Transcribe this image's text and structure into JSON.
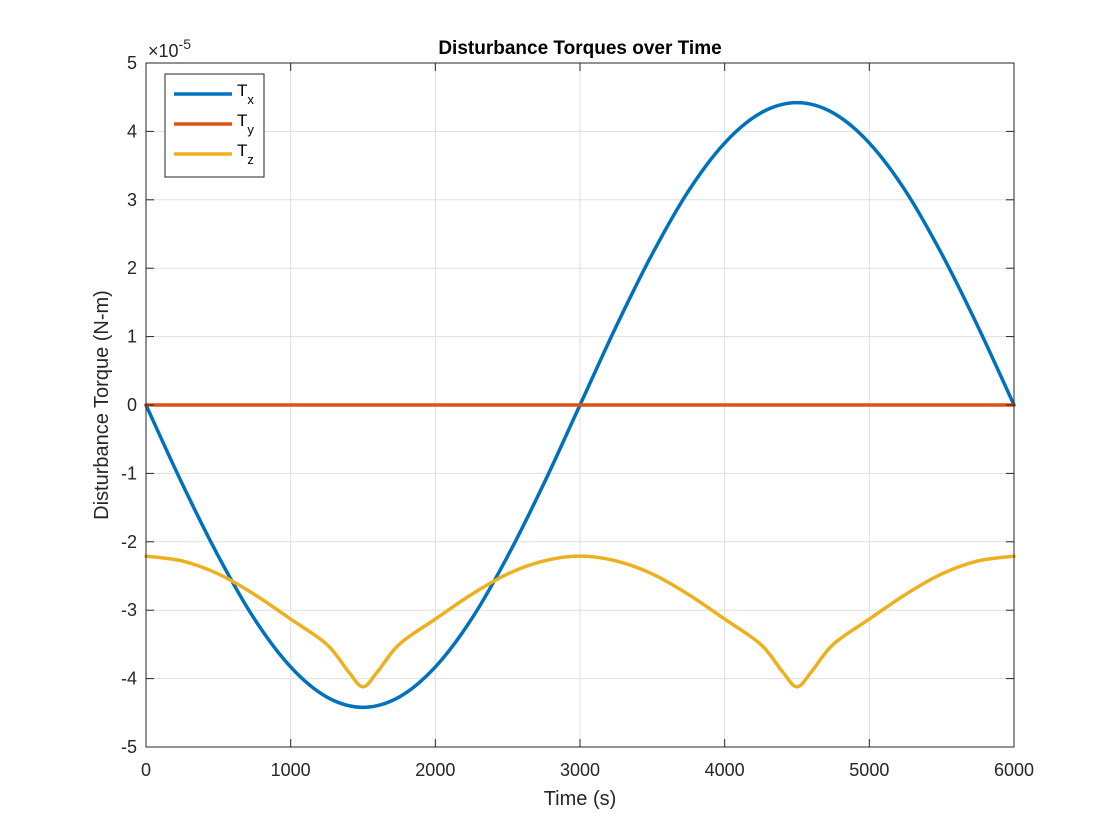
{
  "chart_data": {
    "type": "line",
    "title": "Disturbance Torques over Time",
    "xlabel": "Time (s)",
    "ylabel": "Disturbance Torque (N-m)",
    "exponent_label": "×10",
    "exponent_power": "-5",
    "xlim": [
      0,
      6000
    ],
    "ylim": [
      -5,
      5
    ],
    "y_scale_factor": 1e-05,
    "xticks": [
      0,
      1000,
      2000,
      3000,
      4000,
      5000,
      6000
    ],
    "yticks": [
      -5,
      -4,
      -3,
      -2,
      -1,
      0,
      1,
      2,
      3,
      4,
      5
    ],
    "grid": true,
    "legend_position": "top-left",
    "series": [
      {
        "name": "T",
        "subscript": "x",
        "color": "#0072BD",
        "x": [
          0,
          250,
          500,
          750,
          1000,
          1250,
          1500,
          1750,
          2000,
          2250,
          2500,
          2750,
          3000,
          3250,
          3500,
          3750,
          4000,
          4250,
          4500,
          4750,
          5000,
          5250,
          5500,
          5750,
          6000
        ],
        "y": [
          0,
          -1.15,
          -2.21,
          -3.13,
          -3.83,
          -4.27,
          -4.42,
          -4.27,
          -3.83,
          -3.13,
          -2.21,
          -1.15,
          0,
          1.15,
          2.21,
          3.13,
          3.83,
          4.27,
          4.42,
          4.27,
          3.83,
          3.13,
          2.21,
          1.15,
          0
        ]
      },
      {
        "name": "T",
        "subscript": "y",
        "color": "#D95319",
        "x": [
          0,
          6000
        ],
        "y": [
          0,
          0
        ]
      },
      {
        "name": "T",
        "subscript": "z",
        "color": "#EDB120",
        "x": [
          0,
          250,
          500,
          750,
          1000,
          1250,
          1400,
          1500,
          1600,
          1750,
          2000,
          2250,
          2500,
          2750,
          3000,
          3250,
          3500,
          3750,
          4000,
          4250,
          4400,
          4500,
          4600,
          4750,
          5000,
          5250,
          5500,
          5750,
          6000
        ],
        "y": [
          -2.21,
          -2.28,
          -2.47,
          -2.77,
          -3.13,
          -3.5,
          -3.9,
          -4.12,
          -3.9,
          -3.5,
          -3.13,
          -2.77,
          -2.47,
          -2.28,
          -2.21,
          -2.28,
          -2.47,
          -2.77,
          -3.13,
          -3.5,
          -3.9,
          -4.12,
          -3.9,
          -3.5,
          -3.13,
          -2.77,
          -2.47,
          -2.28,
          -2.21
        ]
      }
    ]
  }
}
